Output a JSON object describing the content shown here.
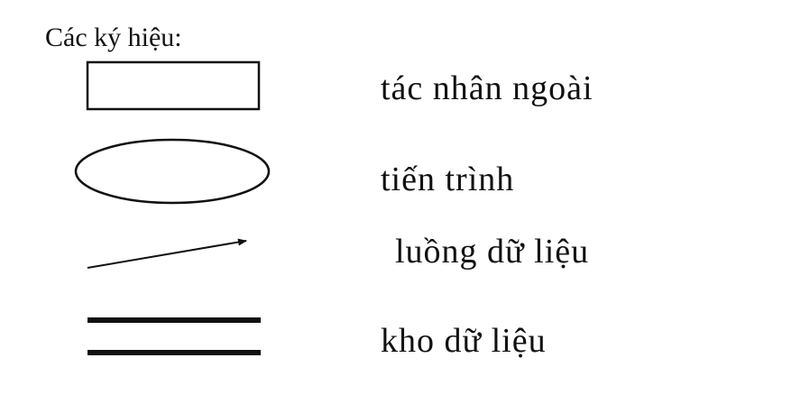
{
  "header": {
    "title": "Các ký hiệu:"
  },
  "legend": {
    "items": [
      {
        "symbol": "rectangle",
        "label": "tác nhân ngoài"
      },
      {
        "symbol": "ellipse",
        "label": "tiến trình"
      },
      {
        "symbol": "arrow",
        "label": "luồng dữ liệu"
      },
      {
        "symbol": "double-line",
        "label": "kho dữ liệu"
      }
    ]
  }
}
